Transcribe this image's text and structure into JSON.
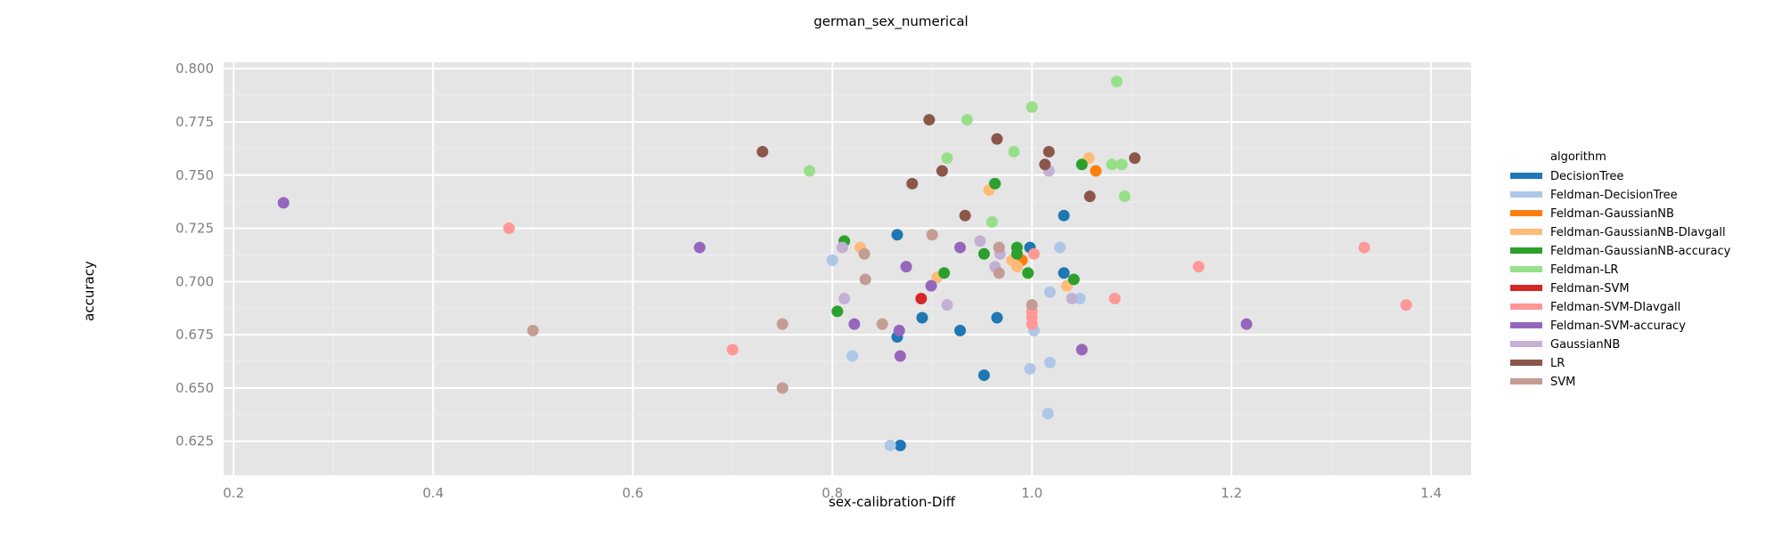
{
  "chart_data": {
    "type": "scatter",
    "title": "german_sex_numerical",
    "xlabel": "sex-calibration-Diff",
    "ylabel": "accuracy",
    "xlim": [
      0.19,
      1.44
    ],
    "ylim": [
      0.609,
      0.803
    ],
    "x_ticks": [
      "0.2",
      "0.4",
      "0.6",
      "0.8",
      "1.0",
      "1.2",
      "1.4"
    ],
    "y_ticks": [
      "0.625",
      "0.650",
      "0.675",
      "0.700",
      "0.725",
      "0.750",
      "0.775",
      "0.800"
    ],
    "grid": true,
    "legend_title": "algorithm",
    "legend_position": "right",
    "series": [
      {
        "name": "DecisionTree",
        "color": "#1f77b4",
        "points": [
          [
            0.865,
            0.722
          ],
          [
            0.865,
            0.674
          ],
          [
            0.868,
            0.623
          ],
          [
            0.89,
            0.683
          ],
          [
            0.928,
            0.677
          ],
          [
            0.952,
            0.656
          ],
          [
            0.965,
            0.683
          ],
          [
            0.998,
            0.716
          ],
          [
            1.032,
            0.731
          ],
          [
            1.032,
            0.704
          ]
        ]
      },
      {
        "name": "Feldman-DecisionTree",
        "color": "#aec7e8",
        "points": [
          [
            0.8,
            0.71
          ],
          [
            0.82,
            0.665
          ],
          [
            0.858,
            0.623
          ],
          [
            0.998,
            0.659
          ],
          [
            1.002,
            0.677
          ],
          [
            1.016,
            0.638
          ],
          [
            1.018,
            0.695
          ],
          [
            1.018,
            0.662
          ],
          [
            1.028,
            0.716
          ],
          [
            1.048,
            0.692
          ],
          [
            0.962,
            0.746
          ]
        ]
      },
      {
        "name": "Feldman-GaussianNB",
        "color": "#ff7f0e",
        "points": [
          [
            0.99,
            0.71
          ],
          [
            1.064,
            0.752
          ]
        ]
      },
      {
        "name": "Feldman-GaussianNB-DIavgall",
        "color": "#ffbb78",
        "points": [
          [
            0.828,
            0.716
          ],
          [
            0.905,
            0.702
          ],
          [
            0.957,
            0.743
          ],
          [
            0.98,
            0.71
          ],
          [
            0.985,
            0.707
          ],
          [
            1.035,
            0.698
          ],
          [
            1.057,
            0.758
          ]
        ]
      },
      {
        "name": "Feldman-GaussianNB-accuracy",
        "color": "#2ca02c",
        "points": [
          [
            0.805,
            0.686
          ],
          [
            0.812,
            0.719
          ],
          [
            0.912,
            0.704
          ],
          [
            0.952,
            0.713
          ],
          [
            0.963,
            0.746
          ],
          [
            0.985,
            0.716
          ],
          [
            0.985,
            0.713
          ],
          [
            0.996,
            0.704
          ],
          [
            1.042,
            0.701
          ],
          [
            1.05,
            0.755
          ]
        ]
      },
      {
        "name": "Feldman-LR",
        "color": "#98df8a",
        "points": [
          [
            0.777,
            0.752
          ],
          [
            0.915,
            0.758
          ],
          [
            0.935,
            0.776
          ],
          [
            0.96,
            0.728
          ],
          [
            0.982,
            0.761
          ],
          [
            1.0,
            0.782
          ],
          [
            1.08,
            0.755
          ],
          [
            1.085,
            0.794
          ],
          [
            1.09,
            0.755
          ],
          [
            1.093,
            0.74
          ]
        ]
      },
      {
        "name": "Feldman-SVM",
        "color": "#d62728",
        "points": [
          [
            0.889,
            0.692
          ]
        ]
      },
      {
        "name": "Feldman-SVM-DIavgall",
        "color": "#ff9896",
        "points": [
          [
            0.476,
            0.725
          ],
          [
            0.7,
            0.668
          ],
          [
            1.0,
            0.686
          ],
          [
            1.0,
            0.683
          ],
          [
            1.0,
            0.68
          ],
          [
            1.002,
            0.713
          ],
          [
            1.083,
            0.692
          ],
          [
            1.167,
            0.707
          ],
          [
            1.333,
            0.716
          ],
          [
            1.375,
            0.689
          ]
        ]
      },
      {
        "name": "Feldman-SVM-accuracy",
        "color": "#9467bd",
        "points": [
          [
            0.25,
            0.737
          ],
          [
            0.667,
            0.716
          ],
          [
            0.822,
            0.68
          ],
          [
            0.867,
            0.677
          ],
          [
            0.868,
            0.665
          ],
          [
            0.874,
            0.707
          ],
          [
            0.899,
            0.698
          ],
          [
            0.928,
            0.716
          ],
          [
            1.05,
            0.668
          ],
          [
            1.215,
            0.68
          ]
        ]
      },
      {
        "name": "GaussianNB",
        "color": "#c5b0d5",
        "points": [
          [
            0.81,
            0.716
          ],
          [
            0.812,
            0.692
          ],
          [
            0.915,
            0.689
          ],
          [
            0.948,
            0.719
          ],
          [
            0.963,
            0.707
          ],
          [
            0.968,
            0.713
          ],
          [
            1.017,
            0.752
          ],
          [
            1.04,
            0.692
          ]
        ]
      },
      {
        "name": "LR",
        "color": "#8c564b",
        "points": [
          [
            0.73,
            0.761
          ],
          [
            0.88,
            0.746
          ],
          [
            0.897,
            0.776
          ],
          [
            0.91,
            0.752
          ],
          [
            0.933,
            0.731
          ],
          [
            0.965,
            0.767
          ],
          [
            1.013,
            0.755
          ],
          [
            1.017,
            0.761
          ],
          [
            1.058,
            0.74
          ],
          [
            1.103,
            0.758
          ]
        ]
      },
      {
        "name": "SVM",
        "color": "#c49c94",
        "points": [
          [
            0.5,
            0.677
          ],
          [
            0.75,
            0.68
          ],
          [
            0.75,
            0.65
          ],
          [
            0.832,
            0.713
          ],
          [
            0.833,
            0.701
          ],
          [
            0.85,
            0.68
          ],
          [
            0.9,
            0.722
          ],
          [
            0.967,
            0.716
          ],
          [
            0.967,
            0.704
          ],
          [
            1.0,
            0.689
          ]
        ]
      }
    ]
  }
}
